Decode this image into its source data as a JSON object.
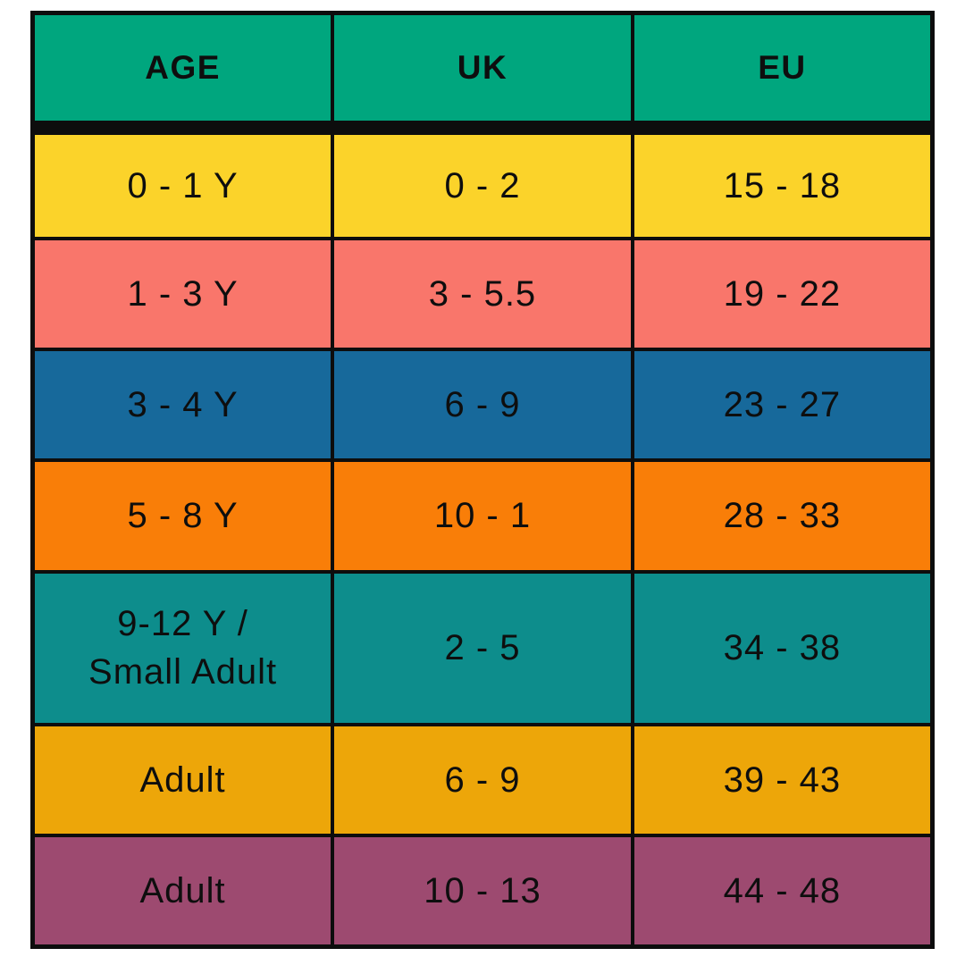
{
  "page": {
    "background": "#FFFFFF"
  },
  "table": {
    "border_color": "#0D0D0D",
    "text_color": "#0E0E0E",
    "header": {
      "bg": "#00A67E",
      "columns": [
        "AGE",
        "UK",
        "EU"
      ]
    },
    "rows": [
      {
        "bg": "#FBD32A",
        "age": "0 - 1 Y",
        "uk": "0 - 2",
        "eu": "15 - 18"
      },
      {
        "bg": "#F9766B",
        "age": "1 - 3 Y",
        "uk": "3 - 5.5",
        "eu": "19 - 22"
      },
      {
        "bg": "#17699B",
        "age": "3 - 4 Y",
        "uk": "6 - 9",
        "eu": "23 - 27"
      },
      {
        "bg": "#F97E08",
        "age": "5 - 8 Y",
        "uk": "10 - 1",
        "eu": "28 - 33"
      },
      {
        "bg": "#0D8D8C",
        "age": "9-12 Y /\nSmall Adult",
        "uk": "2 - 5",
        "eu": "34 - 38"
      },
      {
        "bg": "#EDA609",
        "age": "Adult",
        "uk": "6 - 9",
        "eu": "39 - 43"
      },
      {
        "bg": "#9D4A70",
        "age": "Adult",
        "uk": "10 - 13",
        "eu": "44 - 48"
      }
    ]
  },
  "chart_data": {
    "type": "table",
    "title": "",
    "columns": [
      "AGE",
      "UK",
      "EU"
    ],
    "rows": [
      [
        "0 - 1 Y",
        "0 - 2",
        "15 - 18"
      ],
      [
        "1 - 3 Y",
        "3 - 5.5",
        "19 - 22"
      ],
      [
        "3 - 4 Y",
        "6 - 9",
        "23 - 27"
      ],
      [
        "5 - 8 Y",
        "10 - 1",
        "28 - 33"
      ],
      [
        "9-12 Y / Small Adult",
        "2 - 5",
        "34 - 38"
      ],
      [
        "Adult",
        "6 - 9",
        "39 - 43"
      ],
      [
        "Adult",
        "10 - 13",
        "44 - 48"
      ]
    ],
    "row_colors": [
      "#FBD32A",
      "#F9766B",
      "#17699B",
      "#F97E08",
      "#0D8D8C",
      "#EDA609",
      "#9D4A70"
    ],
    "header_color": "#00A67E"
  }
}
